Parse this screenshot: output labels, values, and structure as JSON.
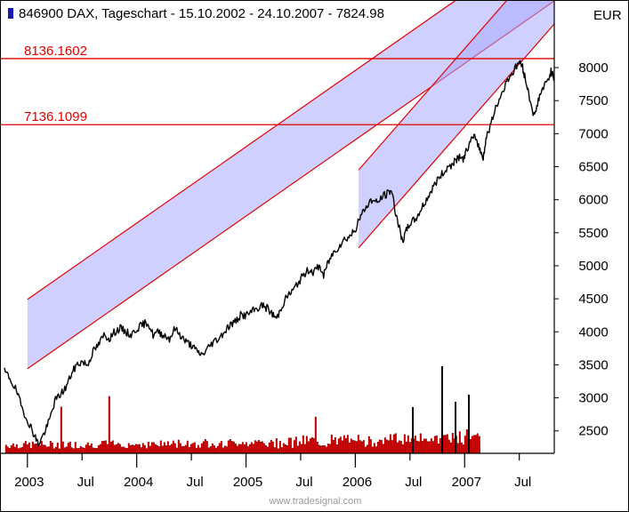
{
  "chart_data": {
    "type": "line",
    "header": {
      "symbol": "846900",
      "name": "DAX",
      "chart_kind": "Tageschart",
      "date_range": "15.10.2002 - 24.10.2007",
      "last_value": "7824.98"
    },
    "unit": "EUR",
    "credit": "www.tradesignal.com",
    "colors": {
      "price": "#000000",
      "channel_fill": "#aaaaff",
      "channel_line": "#e00000",
      "volume": "#e00000",
      "volume_outline": "#000000",
      "level_line": "#e00000"
    },
    "x_axis": {
      "ticks": [
        {
          "t": 2003.0,
          "label": "2003"
        },
        {
          "t": 2003.5,
          "label": "Jul"
        },
        {
          "t": 2004.0,
          "label": "2004"
        },
        {
          "t": 2004.5,
          "label": "Jul"
        },
        {
          "t": 2005.0,
          "label": "2005"
        },
        {
          "t": 2005.5,
          "label": "Jul"
        },
        {
          "t": 2006.0,
          "label": "2006"
        },
        {
          "t": 2006.5,
          "label": "Jul"
        },
        {
          "t": 2007.0,
          "label": "2007"
        },
        {
          "t": 2007.5,
          "label": "Jul"
        }
      ],
      "range": [
        2002.79,
        2007.82
      ]
    },
    "y_axis": {
      "ticks": [
        2500,
        3000,
        3500,
        4000,
        4500,
        5000,
        5500,
        6000,
        6500,
        7000,
        7500,
        8000
      ],
      "range": [
        2160,
        9010
      ]
    },
    "levels": [
      {
        "value": 8136.1602,
        "label": "8136.1602"
      },
      {
        "value": 7136.1099,
        "label": "7136.1099"
      }
    ],
    "channels": [
      {
        "start": [
          2003.0,
          3440
        ],
        "end": [
          2007.82,
          9010
        ],
        "width": 1050
      },
      {
        "start": [
          2006.03,
          5270
        ],
        "end": [
          2007.82,
          8660
        ],
        "width": 1180
      }
    ],
    "price_series": [
      [
        2002.79,
        3400
      ],
      [
        2002.84,
        3300
      ],
      [
        2002.9,
        3100
      ],
      [
        2002.95,
        2850
      ],
      [
        2003.02,
        2600
      ],
      [
        2003.06,
        2450
      ],
      [
        2003.1,
        2300
      ],
      [
        2003.15,
        2450
      ],
      [
        2003.2,
        2650
      ],
      [
        2003.25,
        2950
      ],
      [
        2003.3,
        3050
      ],
      [
        2003.35,
        3150
      ],
      [
        2003.4,
        3350
      ],
      [
        2003.45,
        3500
      ],
      [
        2003.5,
        3550
      ],
      [
        2003.55,
        3500
      ],
      [
        2003.6,
        3700
      ],
      [
        2003.65,
        3800
      ],
      [
        2003.7,
        3950
      ],
      [
        2003.75,
        3900
      ],
      [
        2003.8,
        4000
      ],
      [
        2003.85,
        4050
      ],
      [
        2003.9,
        4000
      ],
      [
        2003.95,
        3950
      ],
      [
        2004.0,
        4050
      ],
      [
        2004.05,
        4100
      ],
      [
        2004.1,
        4150
      ],
      [
        2004.15,
        3950
      ],
      [
        2004.2,
        4000
      ],
      [
        2004.25,
        3950
      ],
      [
        2004.3,
        3900
      ],
      [
        2004.35,
        4050
      ],
      [
        2004.4,
        3950
      ],
      [
        2004.45,
        3850
      ],
      [
        2004.5,
        3800
      ],
      [
        2004.55,
        3700
      ],
      [
        2004.6,
        3650
      ],
      [
        2004.65,
        3750
      ],
      [
        2004.7,
        3850
      ],
      [
        2004.75,
        3900
      ],
      [
        2004.8,
        4000
      ],
      [
        2004.85,
        4100
      ],
      [
        2004.9,
        4150
      ],
      [
        2004.95,
        4250
      ],
      [
        2005.0,
        4250
      ],
      [
        2005.05,
        4300
      ],
      [
        2005.1,
        4350
      ],
      [
        2005.15,
        4400
      ],
      [
        2005.2,
        4350
      ],
      [
        2005.25,
        4250
      ],
      [
        2005.28,
        4200
      ],
      [
        2005.33,
        4400
      ],
      [
        2005.38,
        4550
      ],
      [
        2005.42,
        4600
      ],
      [
        2005.48,
        4750
      ],
      [
        2005.52,
        4850
      ],
      [
        2005.58,
        4950
      ],
      [
        2005.62,
        4900
      ],
      [
        2005.67,
        5000
      ],
      [
        2005.71,
        4850
      ],
      [
        2005.75,
        5050
      ],
      [
        2005.8,
        5200
      ],
      [
        2005.85,
        5300
      ],
      [
        2005.9,
        5400
      ],
      [
        2005.95,
        5450
      ],
      [
        2006.0,
        5550
      ],
      [
        2006.05,
        5750
      ],
      [
        2006.1,
        5900
      ],
      [
        2006.15,
        6000
      ],
      [
        2006.2,
        5950
      ],
      [
        2006.25,
        6050
      ],
      [
        2006.3,
        6100
      ],
      [
        2006.33,
        6150
      ],
      [
        2006.37,
        5800
      ],
      [
        2006.4,
        5600
      ],
      [
        2006.43,
        5350
      ],
      [
        2006.46,
        5500
      ],
      [
        2006.5,
        5650
      ],
      [
        2006.55,
        5700
      ],
      [
        2006.6,
        5850
      ],
      [
        2006.65,
        6000
      ],
      [
        2006.7,
        6150
      ],
      [
        2006.75,
        6300
      ],
      [
        2006.8,
        6400
      ],
      [
        2006.85,
        6500
      ],
      [
        2006.9,
        6550
      ],
      [
        2006.94,
        6650
      ],
      [
        2006.98,
        6600
      ],
      [
        2007.02,
        6750
      ],
      [
        2007.06,
        6900
      ],
      [
        2007.1,
        6950
      ],
      [
        2007.14,
        6750
      ],
      [
        2007.17,
        6650
      ],
      [
        2007.2,
        6950
      ],
      [
        2007.25,
        7200
      ],
      [
        2007.3,
        7450
      ],
      [
        2007.35,
        7650
      ],
      [
        2007.4,
        7850
      ],
      [
        2007.45,
        7950
      ],
      [
        2007.5,
        8100
      ],
      [
        2007.53,
        8000
      ],
      [
        2007.56,
        7800
      ],
      [
        2007.6,
        7500
      ],
      [
        2007.64,
        7250
      ],
      [
        2007.68,
        7550
      ],
      [
        2007.72,
        7700
      ],
      [
        2007.76,
        7800
      ],
      [
        2007.79,
        7950
      ],
      [
        2007.82,
        7825
      ]
    ]
  }
}
